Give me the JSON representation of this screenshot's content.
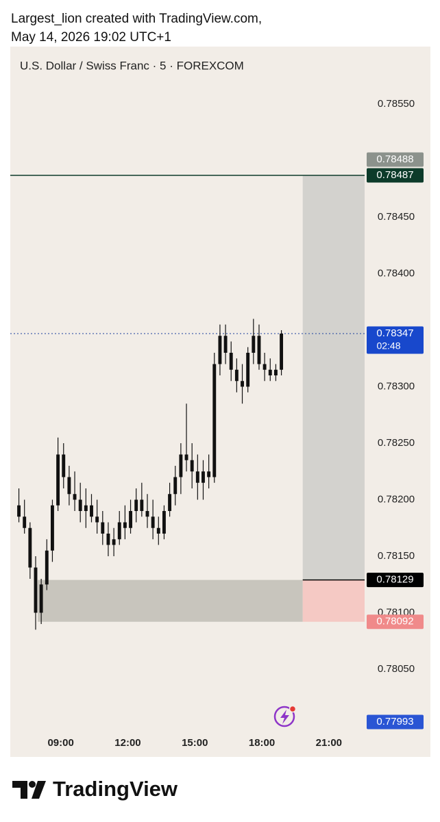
{
  "header": {
    "line1": "Largest_lion created with TradingView.com,",
    "line2": "May 14, 2026 19:02 UTC+1"
  },
  "footer": {
    "brand": "TradingView"
  },
  "chart_data": {
    "type": "candlestick",
    "title": "U.S. Dollar / Swiss Franc · 5 · FOREXCOM",
    "color": "#111111",
    "grid": false,
    "xlim": [
      6.74,
      22.6
    ],
    "ylim": [
      0.7799,
      0.786
    ],
    "xticks": [
      {
        "value": 9,
        "label": "09:00"
      },
      {
        "value": 12,
        "label": "12:00"
      },
      {
        "value": 15,
        "label": "15:00"
      },
      {
        "value": 18,
        "label": "18:00"
      },
      {
        "value": 21,
        "label": "21:00"
      }
    ],
    "yticks": [
      {
        "value": 0.7855,
        "label": "0.78550"
      },
      {
        "value": 0.7845,
        "label": "0.78450"
      },
      {
        "value": 0.784,
        "label": "0.78400"
      },
      {
        "value": 0.783,
        "label": "0.78300"
      },
      {
        "value": 0.7825,
        "label": "0.78250"
      },
      {
        "value": 0.782,
        "label": "0.78200"
      },
      {
        "value": 0.7815,
        "label": "0.78150"
      },
      {
        "value": 0.781,
        "label": "0.78100"
      },
      {
        "value": 0.7805,
        "label": "0.78050"
      }
    ],
    "x": [
      7,
      7.25,
      7.5,
      7.75,
      8,
      8.25,
      8.5,
      8.75,
      9,
      9.25,
      9.5,
      9.75,
      10,
      10.25,
      10.5,
      10.75,
      11,
      11.25,
      11.5,
      11.75,
      12,
      12.25,
      12.5,
      12.75,
      13,
      13.25,
      13.5,
      13.75,
      14,
      14.25,
      14.5,
      14.75,
      15,
      15.25,
      15.5,
      15.75,
      16,
      16.25,
      16.5,
      16.75,
      17,
      17.25,
      17.5,
      17.75,
      18,
      18.25,
      18.5,
      18.75
    ],
    "open": [
      0.78195,
      0.78185,
      0.78175,
      0.7814,
      0.781,
      0.78125,
      0.78155,
      0.78195,
      0.7824,
      0.7822,
      0.78205,
      0.782,
      0.7819,
      0.78195,
      0.78185,
      0.7818,
      0.7817,
      0.7816,
      0.78165,
      0.7818,
      0.78175,
      0.7819,
      0.782,
      0.7819,
      0.78185,
      0.78175,
      0.7817,
      0.7819,
      0.78205,
      0.7822,
      0.7824,
      0.78235,
      0.78225,
      0.78215,
      0.78225,
      0.7822,
      0.7832,
      0.78345,
      0.7833,
      0.78315,
      0.78305,
      0.783,
      0.7833,
      0.78345,
      0.7832,
      0.78315,
      0.7831,
      0.78315
    ],
    "high": [
      0.7821,
      0.782,
      0.7818,
      0.7815,
      0.7813,
      0.78165,
      0.782,
      0.78255,
      0.7825,
      0.7823,
      0.78225,
      0.78215,
      0.7821,
      0.78205,
      0.782,
      0.7819,
      0.7818,
      0.78175,
      0.7819,
      0.78195,
      0.782,
      0.7821,
      0.78215,
      0.78205,
      0.782,
      0.78185,
      0.78195,
      0.78215,
      0.7823,
      0.7825,
      0.78285,
      0.7825,
      0.7824,
      0.78235,
      0.7824,
      0.7833,
      0.78355,
      0.78355,
      0.7834,
      0.78325,
      0.7832,
      0.78335,
      0.7836,
      0.78355,
      0.7833,
      0.78325,
      0.7832,
      0.7835
    ],
    "low": [
      0.7818,
      0.7817,
      0.7813,
      0.78085,
      0.7809,
      0.7812,
      0.78145,
      0.7819,
      0.7821,
      0.78195,
      0.7819,
      0.7818,
      0.78175,
      0.7818,
      0.7817,
      0.7816,
      0.7815,
      0.7815,
      0.7816,
      0.78165,
      0.7817,
      0.7818,
      0.78185,
      0.78175,
      0.78165,
      0.7816,
      0.78165,
      0.78185,
      0.78195,
      0.78205,
      0.78225,
      0.7821,
      0.782,
      0.782,
      0.7821,
      0.78215,
      0.7831,
      0.7832,
      0.78305,
      0.78295,
      0.78285,
      0.78295,
      0.7832,
      0.78315,
      0.78305,
      0.78305,
      0.78305,
      0.7831
    ],
    "close": [
      0.78185,
      0.78175,
      0.7814,
      0.781,
      0.78125,
      0.78155,
      0.78195,
      0.7824,
      0.7822,
      0.78205,
      0.782,
      0.7819,
      0.78195,
      0.78185,
      0.7818,
      0.7817,
      0.7816,
      0.78165,
      0.7818,
      0.78175,
      0.7819,
      0.782,
      0.7819,
      0.78185,
      0.78175,
      0.7817,
      0.7819,
      0.78205,
      0.7822,
      0.7824,
      0.78235,
      0.78225,
      0.78215,
      0.78225,
      0.7822,
      0.7832,
      0.78345,
      0.7833,
      0.78315,
      0.78305,
      0.783,
      0.7833,
      0.78345,
      0.7832,
      0.78315,
      0.7831,
      0.78315,
      0.78347
    ],
    "demand_zone": {
      "top": 0.78129,
      "bottom": 0.78092,
      "start": 7.97,
      "end": 19.83,
      "color": "#c8c5bd"
    },
    "position": {
      "start": 19.83,
      "entry": 0.78129,
      "target": 0.78487,
      "stop": 0.78092,
      "target_color": "#d3d2ce",
      "stop_color": "#f5c9c4"
    },
    "target_line": {
      "value": 0.78487,
      "color": "#0d3b2a"
    },
    "last_price_line": {
      "value": 0.78347,
      "color": "#1a3d9e"
    },
    "countdown": "02:48",
    "price_labels": [
      {
        "value": 0.78487,
        "color": "#0d3b2a"
      },
      {
        "value": 0.78488,
        "color": "#8c928c"
      },
      {
        "value": 0.78347,
        "color": "#1848cc"
      },
      {
        "value": 0.78129,
        "color": "#000000"
      },
      {
        "value": 0.78092,
        "color": "#f08a8a"
      },
      {
        "value": 0.77993,
        "color": "#2a55d4"
      }
    ]
  }
}
